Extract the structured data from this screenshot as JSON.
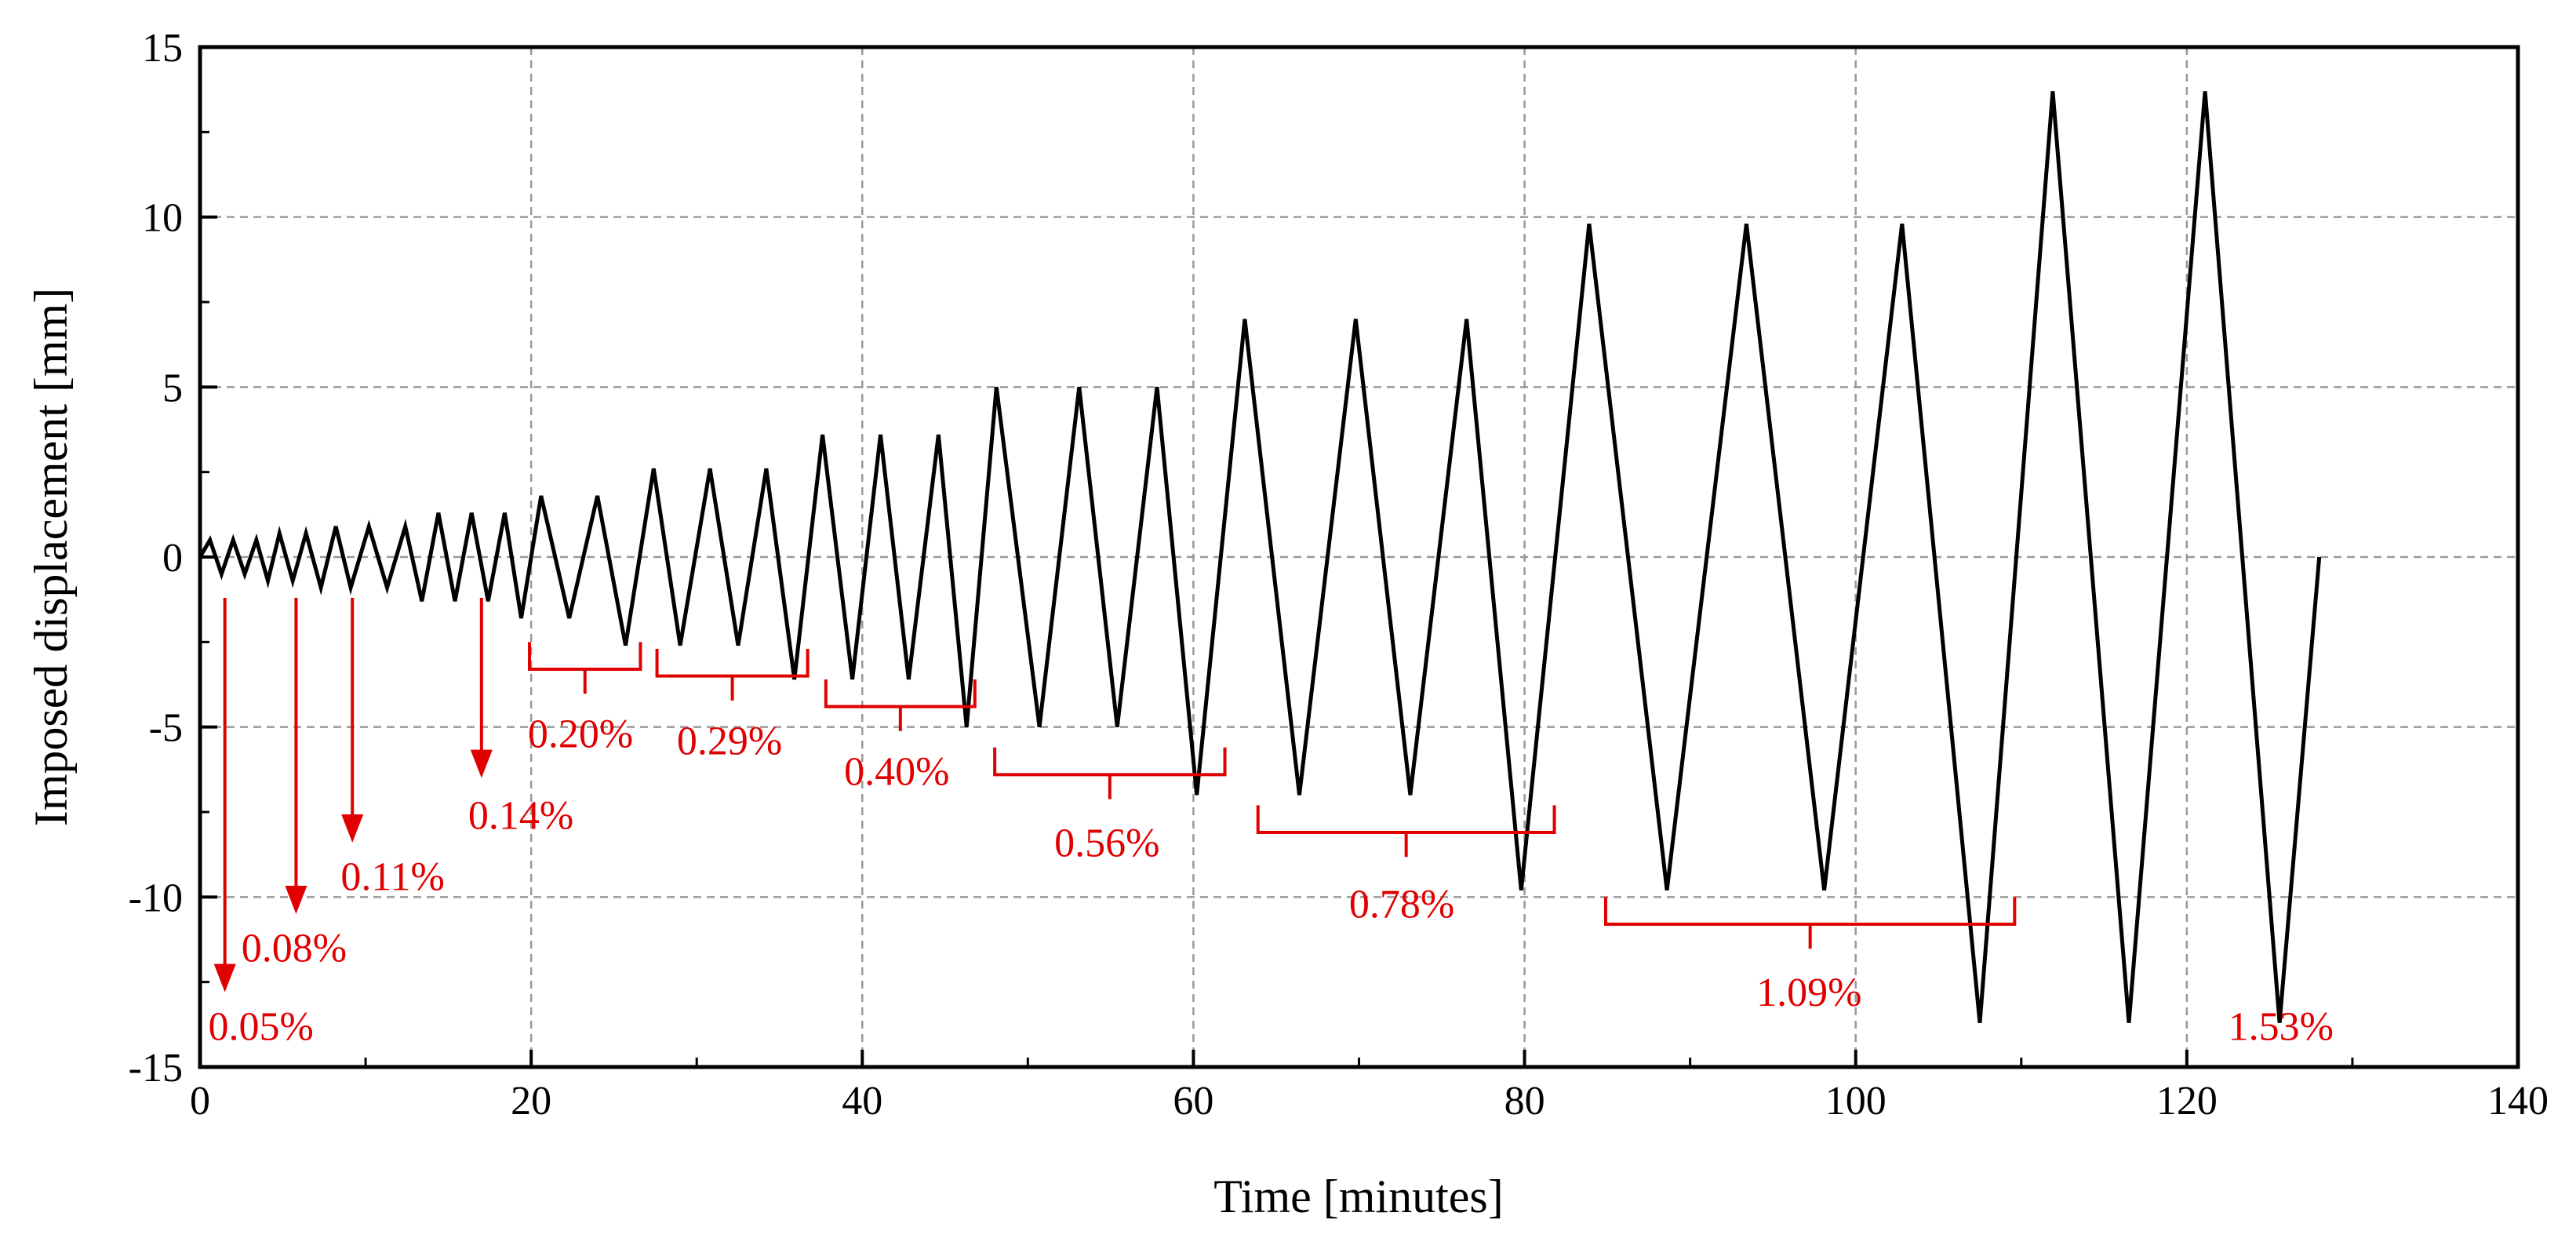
{
  "chart_data": {
    "type": "line",
    "title": "",
    "xlabel": "Time [minutes]",
    "ylabel": "Imposed displacement [mm]",
    "xlim": [
      0,
      140
    ],
    "ylim": [
      -15,
      15
    ],
    "xticks": [
      0,
      20,
      40,
      60,
      80,
      100,
      120,
      140
    ],
    "yticks": [
      -15,
      -10,
      -5,
      0,
      5,
      10,
      15
    ],
    "xtick_labels": [
      "0",
      "20",
      "40",
      "60",
      "80",
      "100",
      "120",
      "140"
    ],
    "ytick_labels": [
      "-15",
      "-10",
      "-5",
      "0",
      "5",
      "10",
      "15"
    ],
    "grid": true,
    "colors": {
      "series": "#000000",
      "annotation": "#e00000",
      "grid": "#999999"
    },
    "series": [
      {
        "name": "Imposed displacement",
        "x": [
          0,
          0.6,
          1.3,
          2.0,
          2.7,
          3.4,
          4.1,
          4.8,
          5.6,
          6.4,
          7.3,
          8.2,
          9.1,
          10.2,
          11.3,
          12.4,
          13.4,
          14.4,
          15.4,
          16.4,
          17.4,
          18.4,
          19.4,
          20.6,
          22.3,
          24.0,
          25.7,
          27.4,
          29.0,
          30.8,
          32.5,
          34.2,
          35.9,
          37.6,
          39.4,
          41.1,
          42.8,
          44.6,
          46.3,
          48.1,
          50.7,
          53.1,
          55.4,
          57.8,
          60.2,
          63.1,
          66.4,
          69.8,
          73.1,
          76.5,
          79.8,
          83.9,
          88.6,
          93.4,
          98.1,
          102.8,
          107.5,
          111.9,
          116.5,
          121.1,
          125.6,
          128.0
        ],
        "y": [
          0,
          0.5,
          -0.5,
          0.5,
          -0.5,
          0.5,
          -0.7,
          0.7,
          -0.7,
          0.7,
          -0.9,
          0.9,
          -0.9,
          0.9,
          -0.9,
          0.9,
          -1.3,
          1.3,
          -1.3,
          1.3,
          -1.3,
          1.3,
          -1.8,
          1.8,
          -1.8,
          1.8,
          -2.6,
          2.6,
          -2.6,
          2.6,
          -2.6,
          2.6,
          -3.6,
          3.6,
          -3.6,
          3.6,
          -3.6,
          3.6,
          -5.0,
          5.0,
          -5.0,
          5.0,
          -5.0,
          5.0,
          -7.0,
          7.0,
          -7.0,
          7.0,
          -7.0,
          7.0,
          -9.8,
          9.8,
          -9.8,
          9.8,
          -9.8,
          9.8,
          -13.7,
          13.7,
          -13.7,
          13.7,
          -13.7,
          0
        ]
      }
    ],
    "annotations": {
      "arrows": [
        {
          "label": "0.05%",
          "x": 1.5,
          "from_y": -1.2,
          "to_y": -12.8,
          "label_x": 0.5,
          "label_y": -14.2
        },
        {
          "label": "0.08%",
          "x": 5.8,
          "from_y": -1.2,
          "to_y": -10.5,
          "label_x": 2.5,
          "label_y": -11.9
        },
        {
          "label": "0.11%",
          "x": 9.2,
          "from_y": -1.2,
          "to_y": -8.4,
          "label_x": 8.5,
          "label_y": -9.8
        },
        {
          "label": "0.14%",
          "x": 17.0,
          "from_y": -1.2,
          "to_y": -6.5,
          "label_x": 16.2,
          "label_y": -8.0
        }
      ],
      "brackets": [
        {
          "label": "0.20%",
          "x1": 19.9,
          "x2": 26.6,
          "y": -3.3,
          "depth": 0.8,
          "label_x": 19.8,
          "label_y": -5.6
        },
        {
          "label": "0.29%",
          "x1": 27.6,
          "x2": 36.7,
          "y": -3.5,
          "depth": 0.8,
          "label_x": 28.8,
          "label_y": -5.8
        },
        {
          "label": "0.40%",
          "x1": 37.8,
          "x2": 46.8,
          "y": -4.4,
          "depth": 0.8,
          "label_x": 38.9,
          "label_y": -6.7
        },
        {
          "label": "0.56%",
          "x1": 48.0,
          "x2": 61.9,
          "y": -6.4,
          "depth": 0.8,
          "label_x": 51.6,
          "label_y": -8.8
        },
        {
          "label": "0.78%",
          "x1": 63.9,
          "x2": 81.8,
          "y": -8.1,
          "depth": 0.8,
          "label_x": 69.4,
          "label_y": -10.6
        },
        {
          "label": "1.09%",
          "x1": 84.9,
          "x2": 109.6,
          "y": -10.8,
          "depth": 0.8,
          "label_x": 94.0,
          "label_y": -13.2
        }
      ],
      "labels": [
        {
          "label": "1.53%",
          "x": 122.5,
          "y": -14.2
        }
      ]
    }
  }
}
